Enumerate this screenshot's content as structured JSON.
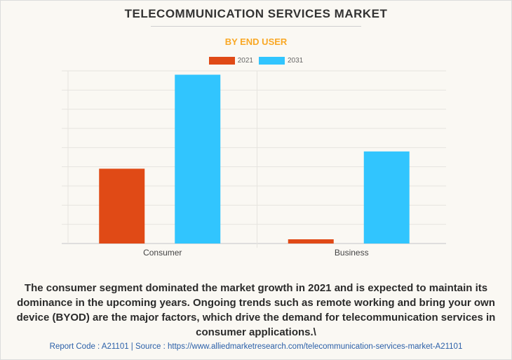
{
  "header": {
    "title": "TELECOMMUNICATION SERVICES MARKET",
    "subtitle": "BY END USER"
  },
  "legend": [
    {
      "label": "2021",
      "color": "#e04a16"
    },
    {
      "label": "2031",
      "color": "#31c5fe"
    }
  ],
  "chart_data": {
    "type": "bar",
    "title": "TELECOMMUNICATION SERVICES MARKET",
    "subtitle": "BY END USER",
    "xlabel": "",
    "ylabel": "",
    "categories": [
      "Consumer",
      "Business"
    ],
    "series": [
      {
        "name": "2021",
        "color": "#e04a16",
        "values": [
          3.9,
          0.22
        ]
      },
      {
        "name": "2031",
        "color": "#31c5fe",
        "values": [
          8.8,
          4.8
        ]
      }
    ],
    "ylim": [
      0,
      9
    ],
    "y_gridlines": 9,
    "y_tick_labels_shown": false,
    "grid": true,
    "legend_position": "top-center"
  },
  "caption": "The consumer segment dominated the market growth in 2021 and is expected to maintain its dominance in the upcoming years. Ongoing trends such as remote working and bring your own device (BYOD) are the major factors, which drive the demand for telecommunication services in consumer applications.\\",
  "footer": {
    "text": "Report Code : A21101  |  Source : https://www.alliedmarketresearch.com/telecommunication-services-market-A21101"
  }
}
